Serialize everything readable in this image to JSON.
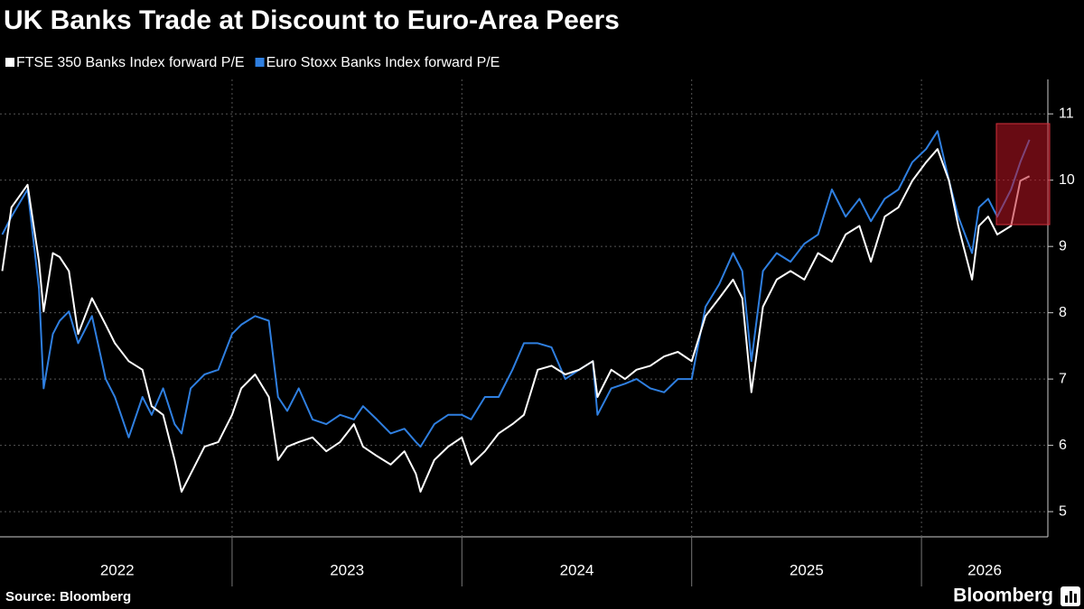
{
  "chart_data": {
    "type": "line",
    "title": "UK Banks Trade at Discount to Euro-Area Peers",
    "source": "Source: Bloomberg",
    "brand": "Bloomberg",
    "x": [
      2022.0,
      2022.04,
      2022.11,
      2022.16,
      2022.18,
      2022.22,
      2022.25,
      2022.29,
      2022.33,
      2022.39,
      2022.45,
      2022.49,
      2022.55,
      2022.61,
      2022.65,
      2022.7,
      2022.75,
      2022.78,
      2022.82,
      2022.88,
      2022.94,
      2023.0,
      2023.04,
      2023.1,
      2023.16,
      2023.2,
      2023.24,
      2023.29,
      2023.35,
      2023.41,
      2023.47,
      2023.53,
      2023.57,
      2023.63,
      2023.69,
      2023.75,
      2023.8,
      2023.82,
      2023.88,
      2023.94,
      2024.0,
      2024.04,
      2024.1,
      2024.16,
      2024.22,
      2024.27,
      2024.33,
      2024.39,
      2024.45,
      2024.51,
      2024.57,
      2024.59,
      2024.65,
      2024.71,
      2024.76,
      2024.82,
      2024.88,
      2024.94,
      2025.0,
      2025.06,
      2025.12,
      2025.18,
      2025.22,
      2025.26,
      2025.31,
      2025.37,
      2025.43,
      2025.49,
      2025.55,
      2025.61,
      2025.67,
      2025.73,
      2025.78,
      2025.84,
      2025.9,
      2025.96,
      2026.02,
      2026.07,
      2026.12,
      2026.16,
      2026.22,
      2026.25,
      2026.29,
      2026.33,
      2026.39,
      2026.43,
      2026.47
    ],
    "series": [
      {
        "name": "FTSE 350 Banks Index forward P/E",
        "color": "#ffffff",
        "values": [
          8.63,
          9.59,
          9.93,
          8.77,
          8.02,
          8.9,
          8.84,
          8.63,
          7.68,
          8.22,
          7.82,
          7.54,
          7.27,
          7.14,
          6.59,
          6.46,
          5.78,
          5.3,
          5.57,
          5.98,
          6.05,
          6.46,
          6.86,
          7.07,
          6.73,
          5.78,
          5.98,
          6.05,
          6.12,
          5.91,
          6.05,
          6.32,
          5.98,
          5.84,
          5.71,
          5.91,
          5.57,
          5.3,
          5.78,
          5.98,
          6.12,
          5.71,
          5.91,
          6.18,
          6.32,
          6.46,
          7.14,
          7.2,
          7.07,
          7.14,
          7.27,
          6.73,
          7.14,
          7.0,
          7.14,
          7.2,
          7.34,
          7.41,
          7.27,
          7.95,
          8.22,
          8.5,
          8.22,
          6.8,
          8.09,
          8.5,
          8.63,
          8.5,
          8.9,
          8.77,
          9.18,
          9.31,
          8.77,
          9.45,
          9.59,
          9.99,
          10.27,
          10.47,
          9.99,
          9.31,
          8.5,
          9.31,
          9.45,
          9.18,
          9.31,
          9.99,
          10.06
        ]
      },
      {
        "name": "Euro Stoxx Banks Index forward P/E",
        "color": "#2f7fe0",
        "values": [
          9.18,
          9.45,
          9.86,
          8.36,
          6.86,
          7.68,
          7.88,
          8.02,
          7.54,
          7.95,
          7.0,
          6.73,
          6.12,
          6.73,
          6.46,
          6.86,
          6.32,
          6.18,
          6.86,
          7.07,
          7.14,
          7.68,
          7.82,
          7.95,
          7.88,
          6.73,
          6.52,
          6.86,
          6.39,
          6.32,
          6.46,
          6.39,
          6.59,
          6.39,
          6.18,
          6.25,
          6.05,
          5.98,
          6.32,
          6.46,
          6.46,
          6.39,
          6.73,
          6.73,
          7.14,
          7.54,
          7.54,
          7.48,
          7.0,
          7.14,
          7.27,
          6.46,
          6.86,
          6.93,
          7.0,
          6.86,
          6.8,
          7.0,
          7.0,
          8.09,
          8.43,
          8.9,
          8.63,
          7.27,
          8.63,
          8.9,
          8.77,
          9.04,
          9.18,
          9.86,
          9.45,
          9.72,
          9.38,
          9.72,
          9.86,
          10.27,
          10.47,
          10.74,
          9.99,
          9.45,
          8.9,
          9.59,
          9.72,
          9.45,
          9.86,
          10.27,
          10.61
        ]
      }
    ],
    "xlim": [
      2021.99,
      2026.55
    ],
    "xticks": [
      {
        "value": 2022.5,
        "label": "2022"
      },
      {
        "value": 2023.5,
        "label": "2023"
      },
      {
        "value": 2024.5,
        "label": "2024"
      },
      {
        "value": 2025.5,
        "label": "2025"
      },
      {
        "value": 2026.5,
        "label": "2026"
      }
    ],
    "ylim": [
      4.62,
      11.52
    ],
    "yticks": [
      5,
      6,
      7,
      8,
      9,
      10,
      11
    ],
    "grid": true
  }
}
